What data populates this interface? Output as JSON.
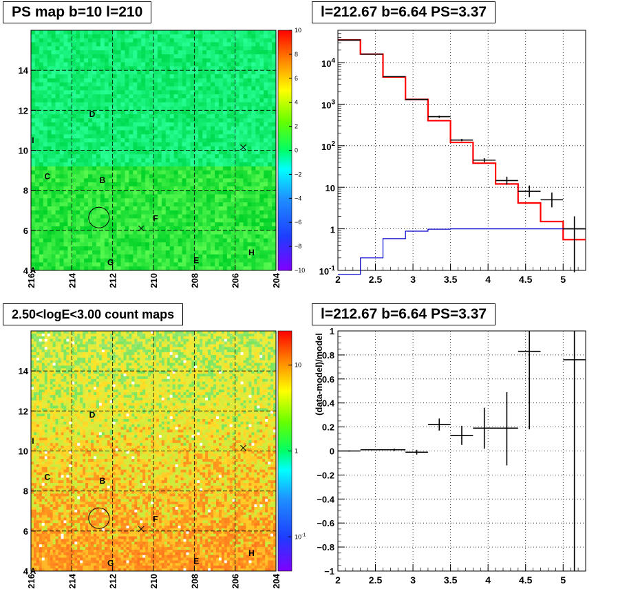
{
  "chart_data": [
    {
      "type": "heatmap",
      "title": "PS map b=10 l=210",
      "x_axis": {
        "range": [
          216,
          204
        ],
        "ticks": [
          "216",
          "214",
          "212",
          "210",
          "208",
          "206",
          "204"
        ]
      },
      "y_axis": {
        "range": [
          4,
          16
        ],
        "ticks": [
          "4",
          "6",
          "8",
          "10",
          "12",
          "14"
        ]
      },
      "colorbar": {
        "scale": "linear",
        "range": [
          -10,
          10
        ],
        "ticks": [
          "10",
          "8",
          "6",
          "4",
          "2",
          "0",
          "−2",
          "−4",
          "−6",
          "−8",
          "−10"
        ]
      },
      "grid": true,
      "source_labels": [
        {
          "text": "A",
          "l": 215.9,
          "b": 4.0
        },
        {
          "text": "B",
          "l": 212.5,
          "b": 8.5
        },
        {
          "text": "C",
          "l": 215.2,
          "b": 8.7
        },
        {
          "text": "D",
          "l": 213.0,
          "b": 11.8
        },
        {
          "text": "E",
          "l": 207.9,
          "b": 4.5
        },
        {
          "text": "F",
          "l": 209.9,
          "b": 6.6
        },
        {
          "text": "G",
          "l": 212.1,
          "b": 4.4
        },
        {
          "text": "H",
          "l": 205.2,
          "b": 4.9
        },
        {
          "text": "I",
          "l": 215.9,
          "b": 10.5
        }
      ],
      "markers": [
        {
          "shape": "circle",
          "l": 212.67,
          "b": 6.64
        },
        {
          "shape": "cross",
          "l": 210.6,
          "b": 6.1
        },
        {
          "shape": "cross",
          "l": 205.6,
          "b": 10.15
        }
      ]
    },
    {
      "type": "line",
      "title": "l=212.67 b=6.64 PS=3.37",
      "xlim": [
        2,
        5.3
      ],
      "ylim_log": [
        0.1,
        60000
      ],
      "y_scale": "log",
      "x_ticks": [
        "2",
        "2.5",
        "3",
        "3.5",
        "4",
        "4.5",
        "5"
      ],
      "y_ticks": [
        "10^-1",
        "1",
        "10",
        "10^2",
        "10^3",
        "10^4"
      ],
      "grid": true,
      "series": [
        {
          "style": "step",
          "color": "#ff0000",
          "edges": [
            2,
            2.3,
            2.6,
            2.9,
            3.2,
            3.5,
            3.8,
            4.1,
            4.4,
            4.7,
            5.0,
            5.3
          ],
          "values": [
            35000,
            16000,
            4500,
            1300,
            400,
            120,
            38,
            12,
            4.2,
            1.5,
            0.55
          ]
        },
        {
          "style": "step",
          "color": "#0000cc",
          "edges": [
            2,
            2.3,
            2.6,
            2.9,
            3.2,
            3.5,
            3.8,
            4.1,
            4.4,
            4.7,
            5.0,
            5.3
          ],
          "values": [
            0.08,
            0.2,
            0.58,
            0.88,
            0.98,
            1.0,
            1.0,
            1.0,
            1.0,
            1.0,
            1.0
          ]
        },
        {
          "style": "errorbar",
          "color": "#000000",
          "points": [
            {
              "x": 2.15,
              "xerr": 0.15,
              "y": 35000,
              "ylo": 35000,
              "yhi": 35000
            },
            {
              "x": 2.45,
              "xerr": 0.15,
              "y": 16000,
              "ylo": 16000,
              "yhi": 16000
            },
            {
              "x": 2.75,
              "xerr": 0.15,
              "y": 4600,
              "ylo": 4600,
              "yhi": 4600
            },
            {
              "x": 3.05,
              "xerr": 0.15,
              "y": 1300,
              "ylo": 1300,
              "yhi": 1300
            },
            {
              "x": 3.35,
              "xerr": 0.15,
              "y": 500,
              "ylo": 470,
              "yhi": 530
            },
            {
              "x": 3.65,
              "xerr": 0.15,
              "y": 137,
              "ylo": 128,
              "yhi": 146
            },
            {
              "x": 3.95,
              "xerr": 0.15,
              "y": 45,
              "ylo": 40,
              "yhi": 50
            },
            {
              "x": 4.25,
              "xerr": 0.15,
              "y": 14.5,
              "ylo": 11.5,
              "yhi": 18
            },
            {
              "x": 4.55,
              "xerr": 0.15,
              "y": 8,
              "ylo": 5.8,
              "yhi": 11
            },
            {
              "x": 4.85,
              "xerr": 0.15,
              "y": 5,
              "ylo": 3.3,
              "yhi": 7.5
            },
            {
              "x": 5.15,
              "xerr": 0.15,
              "y": 1.0,
              "ylo": 0.09,
              "yhi": 2.0
            }
          ]
        }
      ]
    },
    {
      "type": "heatmap",
      "title": "2.50<logE<3.00 count maps",
      "x_axis": {
        "range": [
          216,
          204
        ],
        "ticks": [
          "216",
          "214",
          "212",
          "210",
          "208",
          "206",
          "204"
        ]
      },
      "y_axis": {
        "range": [
          4,
          16
        ],
        "ticks": [
          "4",
          "6",
          "8",
          "10",
          "12",
          "14"
        ]
      },
      "colorbar": {
        "scale": "log",
        "range": [
          0.04,
          25
        ],
        "ticks": [
          "10",
          "1",
          "10^-1"
        ]
      },
      "grid": true,
      "source_labels": [
        {
          "text": "A",
          "l": 215.9,
          "b": 4.0
        },
        {
          "text": "B",
          "l": 212.5,
          "b": 8.5
        },
        {
          "text": "C",
          "l": 215.2,
          "b": 8.7
        },
        {
          "text": "D",
          "l": 213.0,
          "b": 11.8
        },
        {
          "text": "E",
          "l": 207.9,
          "b": 4.5
        },
        {
          "text": "F",
          "l": 209.9,
          "b": 6.6
        },
        {
          "text": "G",
          "l": 212.1,
          "b": 4.4
        },
        {
          "text": "H",
          "l": 205.2,
          "b": 4.9
        },
        {
          "text": "I",
          "l": 215.9,
          "b": 10.5
        }
      ],
      "markers": [
        {
          "shape": "circle",
          "l": 212.67,
          "b": 6.64
        },
        {
          "shape": "cross",
          "l": 210.6,
          "b": 6.1
        },
        {
          "shape": "cross",
          "l": 205.6,
          "b": 10.15
        }
      ]
    },
    {
      "type": "scatter",
      "title": "l=212.67 b=6.64 PS=3.37",
      "ylabel": "(data-model)/model",
      "xlim": [
        2,
        5.3
      ],
      "ylim": [
        -1,
        1
      ],
      "x_ticks": [
        "2",
        "2.5",
        "3",
        "3.5",
        "4",
        "4.5",
        "5"
      ],
      "y_ticks": [
        "1",
        "0.8",
        "0.6",
        "0.4",
        "0.2",
        "0",
        "−0.2",
        "−0.4",
        "−0.6",
        "−0.8",
        "−1"
      ],
      "grid": true,
      "series": [
        {
          "style": "errorbar",
          "color": "#000000",
          "points": [
            {
              "x": 2.15,
              "xerr": 0.15,
              "y": 0.0,
              "ylo": -0.005,
              "yhi": 0.005
            },
            {
              "x": 2.45,
              "xerr": 0.15,
              "y": 0.01,
              "ylo": 0.005,
              "yhi": 0.015
            },
            {
              "x": 2.75,
              "xerr": 0.15,
              "y": 0.01,
              "ylo": 0.0,
              "yhi": 0.02
            },
            {
              "x": 3.05,
              "xerr": 0.15,
              "y": -0.01,
              "ylo": -0.03,
              "yhi": 0.01
            },
            {
              "x": 3.35,
              "xerr": 0.15,
              "y": 0.22,
              "ylo": 0.17,
              "yhi": 0.27
            },
            {
              "x": 3.65,
              "xerr": 0.15,
              "y": 0.13,
              "ylo": 0.05,
              "yhi": 0.21
            },
            {
              "x": 3.95,
              "xerr": 0.15,
              "y": 0.19,
              "ylo": 0.02,
              "yhi": 0.36
            },
            {
              "x": 4.25,
              "xerr": 0.15,
              "y": 0.19,
              "ylo": -0.12,
              "yhi": 0.49
            },
            {
              "x": 4.55,
              "xerr": 0.15,
              "y": 0.83,
              "ylo": 0.18,
              "yhi": 1.0
            },
            {
              "x": 5.15,
              "xerr": 0.15,
              "y": 0.76,
              "ylo": -1.0,
              "yhi": 1.0
            }
          ]
        }
      ]
    }
  ]
}
